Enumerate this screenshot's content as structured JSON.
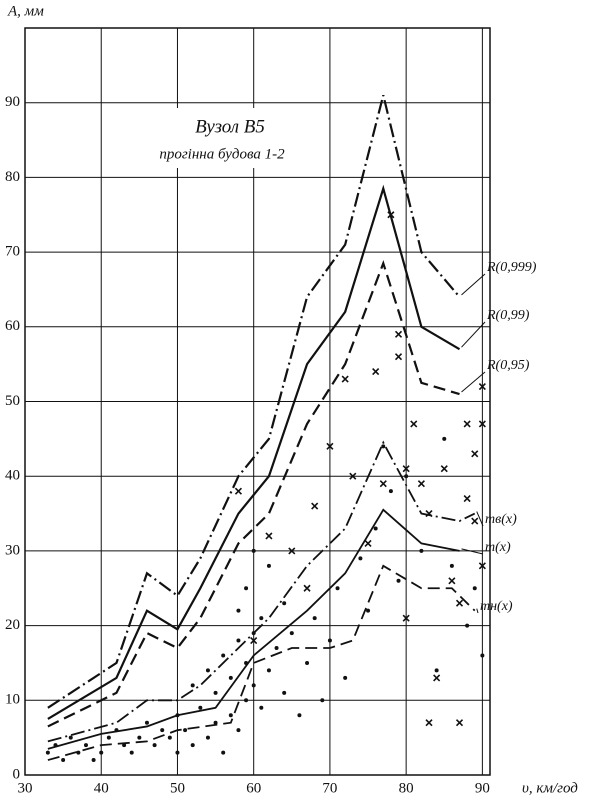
{
  "chart_data": {
    "type": "line",
    "title": "Вузол В5",
    "subtitle": "прогінна будова 1-2",
    "y_label": "A, мм",
    "x_label": "υ, км/год",
    "xlim": [
      30,
      91
    ],
    "ylim": [
      0,
      100
    ],
    "xticks": [
      30,
      40,
      50,
      60,
      70,
      80,
      90
    ],
    "yticks": [
      0,
      10,
      20,
      30,
      40,
      50,
      60,
      70,
      80,
      90
    ],
    "grid": true,
    "series": [
      {
        "name": "R(0,999)",
        "style": "dashdot",
        "color": "#111",
        "x": [
          33,
          42,
          46,
          50,
          53,
          58,
          62,
          67,
          72,
          77,
          82,
          87
        ],
        "values": [
          9,
          15,
          27,
          24,
          29,
          40,
          45,
          64,
          71,
          91,
          70,
          64
        ]
      },
      {
        "name": "R(0,99)",
        "style": "solid",
        "color": "#111",
        "x": [
          33,
          42,
          46,
          50,
          53,
          58,
          62,
          67,
          72,
          77,
          82,
          87
        ],
        "values": [
          7.5,
          13,
          22,
          19.5,
          25,
          35,
          40,
          55,
          62,
          78.5,
          60,
          57
        ]
      },
      {
        "name": "R(0,95)",
        "style": "dashed",
        "color": "#111",
        "x": [
          33,
          42,
          46,
          50,
          53,
          58,
          62,
          67,
          72,
          77,
          82,
          87
        ],
        "values": [
          6.5,
          11,
          19,
          17,
          21,
          31,
          35,
          47,
          55,
          68.5,
          52.5,
          51
        ]
      },
      {
        "name": "mв(x)",
        "style": "dashdot",
        "color": "#111",
        "x": [
          33,
          42,
          46,
          50,
          53,
          58,
          62,
          67,
          72,
          77,
          82,
          87,
          89
        ],
        "values": [
          4.5,
          7,
          10,
          10,
          12,
          17,
          21,
          28,
          33,
          44.5,
          35,
          34,
          35
        ]
      },
      {
        "name": "m(x)",
        "style": "solid",
        "color": "#111",
        "x": [
          33,
          40,
          46,
          50,
          55,
          60,
          67,
          72,
          77,
          82,
          87
        ],
        "values": [
          3.5,
          5.5,
          6.5,
          8,
          9,
          16,
          22,
          27,
          35.5,
          31,
          30
        ]
      },
      {
        "name": "mн(x)",
        "style": "dashed",
        "color": "#111",
        "x": [
          33,
          40,
          46,
          50,
          57,
          60,
          65,
          70,
          73,
          77,
          82,
          86,
          89
        ],
        "values": [
          2,
          4,
          4.5,
          6,
          7,
          15,
          17,
          17,
          18,
          28,
          25,
          25,
          22
        ]
      },
      {
        "marker": "dot",
        "color": "#111",
        "x": [
          33,
          34,
          35,
          36,
          37,
          38,
          39,
          40,
          41,
          42,
          43,
          44,
          45,
          46,
          47,
          48,
          49,
          50,
          50,
          51,
          52,
          52,
          53,
          54,
          54,
          55,
          55,
          56,
          56,
          57,
          57,
          58,
          58,
          58,
          59,
          59,
          59,
          60,
          60,
          60,
          61,
          61,
          62,
          62,
          63,
          64,
          64,
          65,
          66,
          67,
          68,
          69,
          70,
          71,
          72,
          74,
          75,
          76,
          77,
          78,
          79,
          80,
          82,
          84,
          85,
          86,
          88,
          89,
          90
        ],
        "values": [
          3,
          4,
          2,
          5,
          3,
          4,
          2,
          3,
          5,
          6,
          4,
          3,
          5,
          7,
          4,
          6,
          5,
          3,
          8,
          6,
          4,
          12,
          9,
          5,
          14,
          7,
          11,
          3,
          16,
          8,
          13,
          6,
          18,
          22,
          10,
          15,
          25,
          12,
          19,
          30,
          9,
          21,
          14,
          28,
          17,
          11,
          23,
          19,
          8,
          15,
          21,
          10,
          18,
          25,
          13,
          29,
          22,
          33,
          44,
          38,
          26,
          40,
          30,
          14,
          45,
          28,
          20,
          25,
          16
        ]
      },
      {
        "marker": "cross",
        "color": "#111",
        "x": [
          58,
          60,
          62,
          65,
          67,
          68,
          70,
          72,
          73,
          75,
          76,
          77,
          78,
          79,
          79,
          80,
          80,
          81,
          82,
          83,
          83,
          84,
          85,
          86,
          87,
          87,
          88,
          88,
          89,
          89,
          90,
          90,
          90
        ],
        "values": [
          38,
          18,
          32,
          30,
          25,
          36,
          44,
          53,
          40,
          31,
          54,
          39,
          75,
          59,
          56,
          41,
          21,
          47,
          39,
          35,
          7,
          13,
          41,
          26,
          23,
          7,
          37,
          47,
          34,
          43,
          47,
          28,
          52
        ]
      }
    ]
  }
}
